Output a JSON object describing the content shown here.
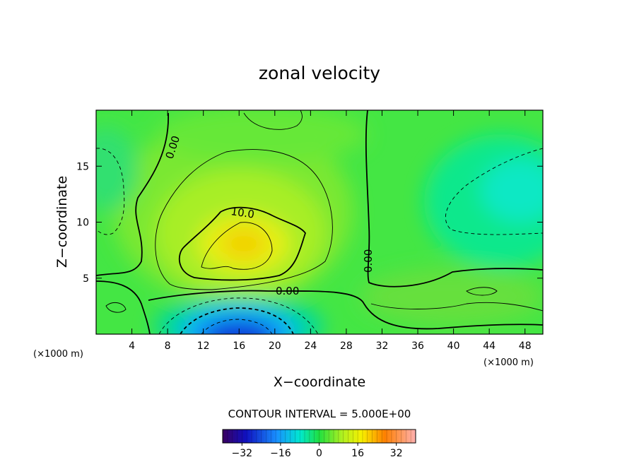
{
  "chart_data": {
    "type": "heatmap",
    "title": "zonal velocity",
    "xlabel": "X−coordinate",
    "ylabel": "Z−coordinate",
    "x_unit_label": "(×1000 m)",
    "z_unit_label": "(×1000 m)",
    "xlim": [
      0,
      50
    ],
    "ylim": [
      0,
      20
    ],
    "x_ticks": [
      4,
      8,
      12,
      16,
      20,
      24,
      28,
      32,
      36,
      40,
      44,
      48
    ],
    "y_ticks": [
      5,
      10,
      15
    ],
    "contour_interval_text": "CONTOUR INTERVAL = 5.000E+00",
    "contour_labels": [
      "0.00",
      "10.0",
      "0.00",
      "0.00"
    ],
    "colorbar": {
      "range": [
        -40,
        40
      ],
      "ticks": [
        -32,
        -16,
        0,
        16,
        32
      ],
      "colormap": "rainbow"
    },
    "features": [
      {
        "kind": "max",
        "x": 17,
        "z": 8.0,
        "value": 24
      },
      {
        "kind": "min",
        "x": 15,
        "z": 0.5,
        "value": -22
      },
      {
        "kind": "weak-min",
        "x": 46,
        "z": 12.0,
        "value": -12
      }
    ]
  }
}
